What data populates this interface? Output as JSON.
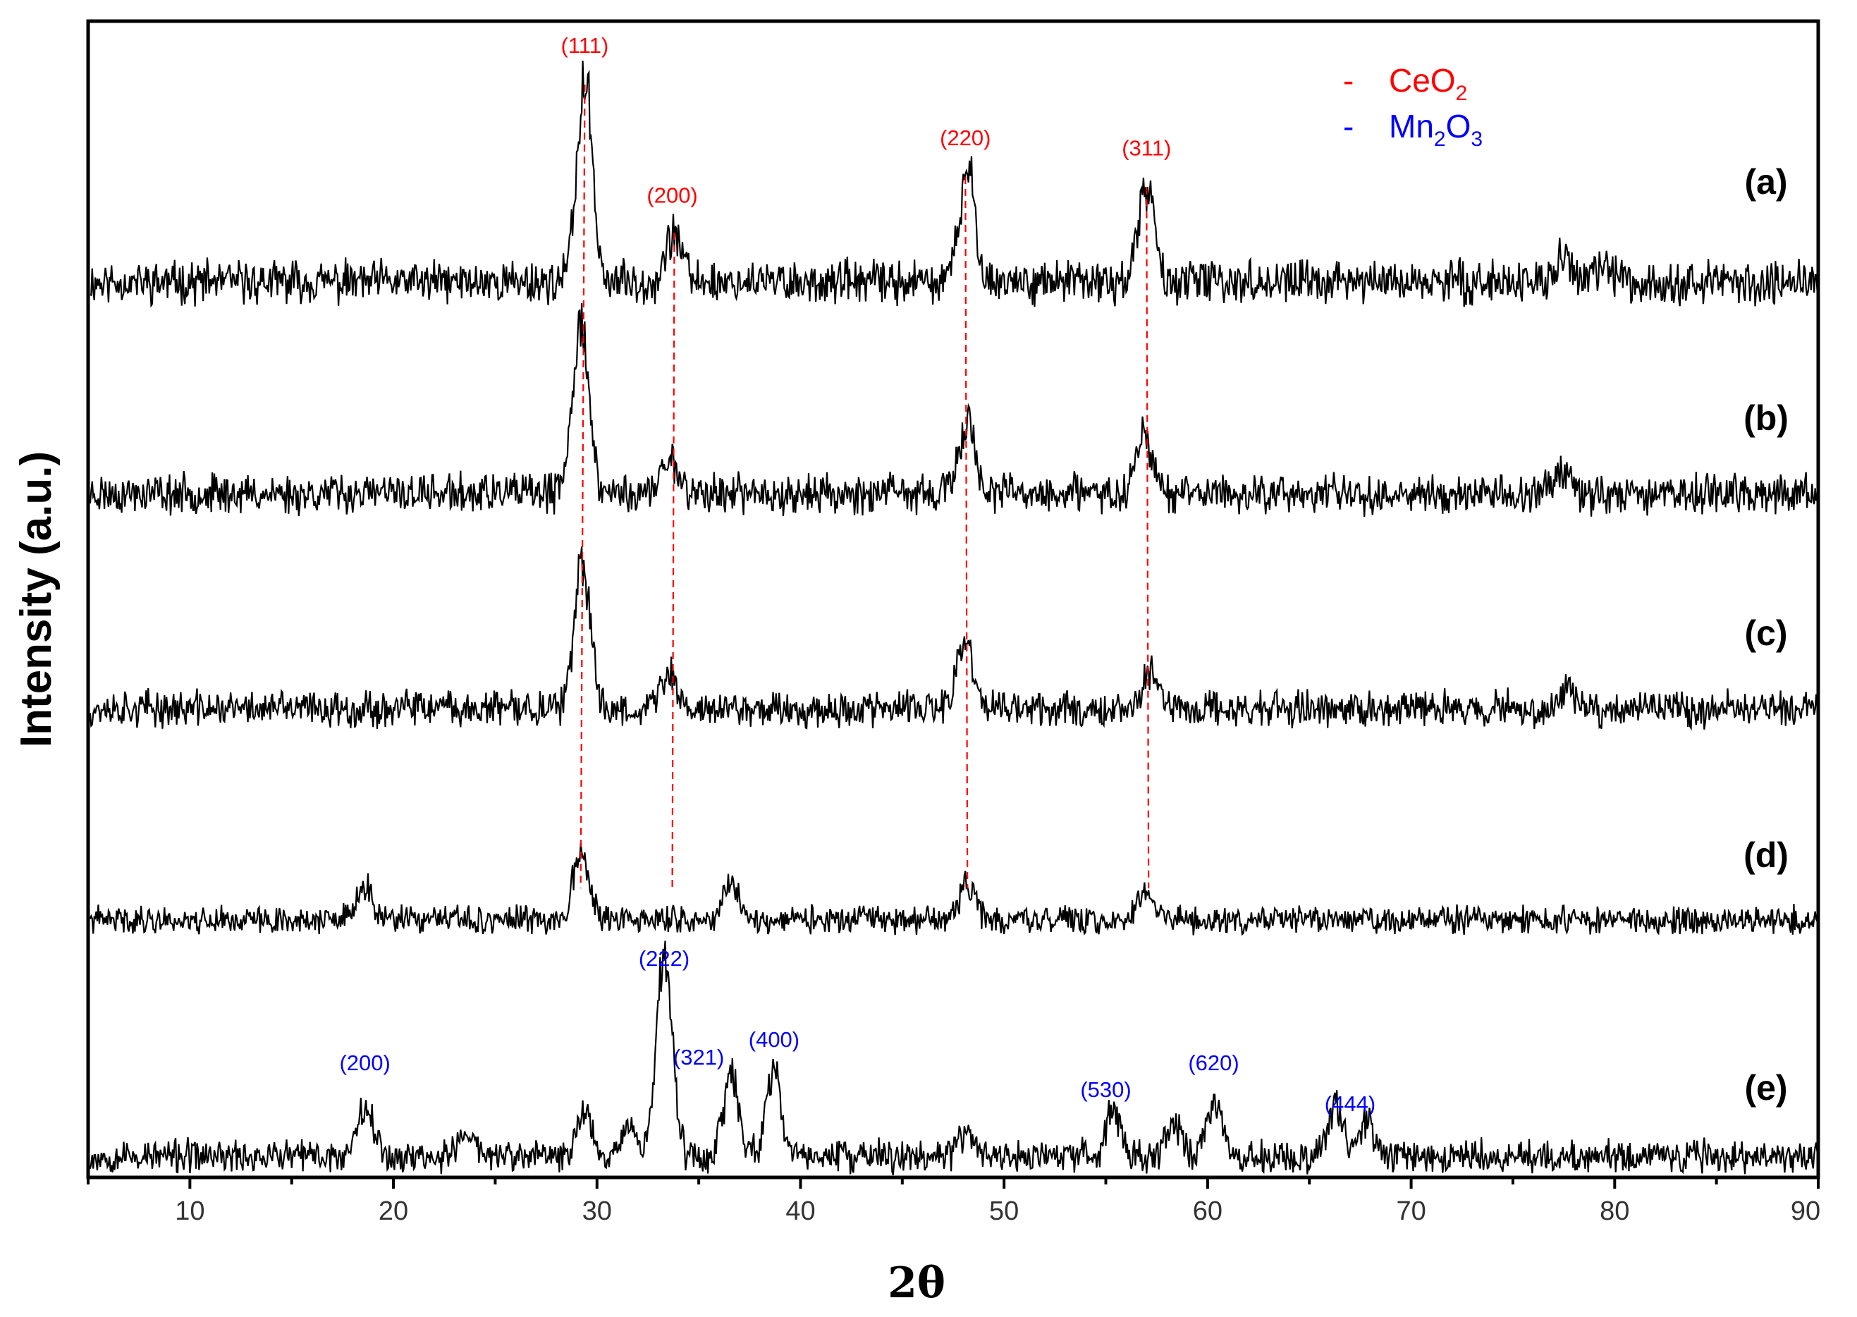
{
  "chart_data": {
    "type": "line",
    "xlabel": "2θ",
    "ylabel": "Intensity (a.u.)",
    "xlim": [
      5,
      90
    ],
    "xticks": [
      10,
      20,
      30,
      40,
      50,
      60,
      70,
      80,
      90
    ],
    "grid": false,
    "legend": {
      "placement": "top-right",
      "entries": [
        {
          "marker": "-",
          "name": "CeO",
          "sub": "2",
          "color": "#ff0000"
        },
        {
          "marker": "-",
          "name": "Mn",
          "sub": "2",
          "name2": "O",
          "sub2": "3",
          "color": "#0000ff"
        }
      ]
    },
    "series": [
      {
        "name": "(a)",
        "baseline_seed": 11,
        "peaks": [
          [
            29.4,
            1.0
          ],
          [
            33.8,
            0.25
          ],
          [
            48.2,
            0.55
          ],
          [
            57.0,
            0.48
          ],
          [
            77.5,
            0.12
          ],
          [
            79.5,
            0.08
          ]
        ]
      },
      {
        "name": "(b)",
        "baseline_seed": 23,
        "peaks": [
          [
            29.2,
            0.95
          ],
          [
            33.6,
            0.2
          ],
          [
            48.2,
            0.4
          ],
          [
            56.9,
            0.35
          ],
          [
            77.5,
            0.15
          ]
        ]
      },
      {
        "name": "(c)",
        "baseline_seed": 37,
        "peaks": [
          [
            29.3,
            0.85
          ],
          [
            33.5,
            0.2
          ],
          [
            48.1,
            0.4
          ],
          [
            57.2,
            0.22
          ],
          [
            77.8,
            0.12
          ]
        ]
      },
      {
        "name": "(d)",
        "baseline_seed": 41,
        "peaks": [
          [
            18.6,
            0.25
          ],
          [
            29.2,
            0.55
          ],
          [
            36.6,
            0.28
          ],
          [
            48.2,
            0.28
          ],
          [
            57.0,
            0.25
          ]
        ]
      },
      {
        "name": "(e)",
        "baseline_seed": 53,
        "peaks": [
          [
            18.6,
            0.35
          ],
          [
            23.6,
            0.15
          ],
          [
            29.4,
            0.28
          ],
          [
            31.5,
            0.2
          ],
          [
            33.3,
            1.3
          ],
          [
            36.6,
            0.5
          ],
          [
            38.7,
            0.5
          ],
          [
            48.2,
            0.15
          ],
          [
            55.4,
            0.3
          ],
          [
            58.3,
            0.2
          ],
          [
            60.3,
            0.35
          ],
          [
            66.3,
            0.32
          ],
          [
            67.8,
            0.2
          ]
        ]
      }
    ],
    "reference_lines": [
      {
        "color": "#ff0000",
        "style": "dashed",
        "x_top": 29.4,
        "x_bottom": 29.2
      },
      {
        "color": "#ff0000",
        "style": "dashed",
        "x_top": 33.8,
        "x_bottom": 33.7
      },
      {
        "color": "#ff0000",
        "style": "dashed",
        "x_top": 48.1,
        "x_bottom": 48.2
      },
      {
        "color": "#ff0000",
        "style": "dashed",
        "x_top": 57.0,
        "x_bottom": 57.1
      }
    ],
    "annotations": [
      {
        "text": "(111)",
        "x": 29.4,
        "color": "#ff0000",
        "trace": "(a)",
        "above": 0.0
      },
      {
        "text": "(200)",
        "x": 33.7,
        "color": "#ff0000",
        "trace": "(a)",
        "above": 0.0
      },
      {
        "text": "(220)",
        "x": 48.1,
        "color": "#ff0000",
        "trace": "(a)",
        "above": 0.0
      },
      {
        "text": "(311)",
        "x": 57.0,
        "color": "#ff0000",
        "trace": "(a)",
        "above": 0.0
      },
      {
        "text": "(222)",
        "x": 33.3,
        "color": "#0000ff",
        "trace": "(e)",
        "above": 0.0
      },
      {
        "text": "(200)",
        "x": 18.6,
        "color": "#0000ff",
        "trace": "(e)",
        "above": 0.0
      },
      {
        "text": "(321)",
        "x": 35.0,
        "color": "#0000ff",
        "trace": "(e)",
        "above": 0.0
      },
      {
        "text": "(400)",
        "x": 38.7,
        "color": "#0000ff",
        "trace": "(e)",
        "above": 0.0
      },
      {
        "text": "(530)",
        "x": 55.0,
        "color": "#0000ff",
        "trace": "(e)",
        "above": 0.0
      },
      {
        "text": "(620)",
        "x": 60.3,
        "color": "#0000ff",
        "trace": "(e)",
        "above": 0.0
      },
      {
        "text": "(444)",
        "x": 67.0,
        "color": "#0000ff",
        "trace": "(e)",
        "above": 0.0
      }
    ]
  }
}
